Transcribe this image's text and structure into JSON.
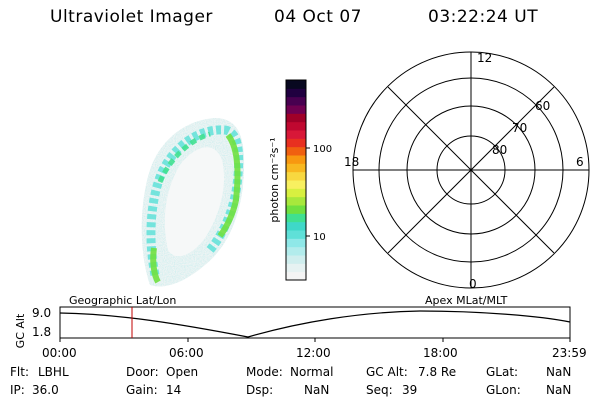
{
  "header": {
    "instrument": "Ultraviolet Imager",
    "date": "04 Oct 07",
    "time": "03:22:24 UT"
  },
  "colorbar": {
    "unit_label": "photon cm⁻²s⁻¹",
    "ticks": [
      "100",
      "10"
    ],
    "colors": [
      "#f4f4f4",
      "#e6f2f2",
      "#cfeeee",
      "#b2ecec",
      "#8fe8e8",
      "#5fe0d8",
      "#3fd8c8",
      "#40e090",
      "#70e040",
      "#a8e83c",
      "#d8f040",
      "#f8f060",
      "#f8d840",
      "#f8b820",
      "#f89810",
      "#f06010",
      "#e83020",
      "#d81838",
      "#c00830",
      "#a00028",
      "#700050",
      "#480050",
      "#200040",
      "#080820"
    ],
    "accent_frame": "#000000"
  },
  "polar_plot": {
    "labels": {
      "top": "12",
      "bottom": "0",
      "left": "18",
      "right": "6"
    },
    "rings": [
      "60",
      "70",
      "80"
    ]
  },
  "timeline": {
    "ylabel": "GC Alt",
    "ytick_top": "9.0",
    "ytick_bottom": "1.8",
    "left_caption": "Geographic Lat/Lon",
    "right_caption": "Apex MLat/MLT",
    "xticks": [
      "00:00",
      "06:00",
      "12:00",
      "18:00",
      "23:59"
    ],
    "marker_color": "#c00000"
  },
  "status": {
    "flt_label": "Flt:",
    "flt_value": "LBHL",
    "ip_label": "IP:",
    "ip_value": "36.0",
    "door_label": "Door:",
    "door_value": "Open",
    "gain_label": "Gain:",
    "gain_value": "14",
    "mode_label": "Mode:",
    "mode_value": "Normal",
    "dsp_label": "Dsp:",
    "dsp_value": "NaN",
    "gcalt_label": "GC Alt:",
    "gcalt_value": "7.8 Re",
    "seq_label": "Seq:",
    "seq_value": "39",
    "glat_label": "GLat:",
    "glat_value": "NaN",
    "glon_label": "GLon:",
    "glon_value": "NaN"
  }
}
